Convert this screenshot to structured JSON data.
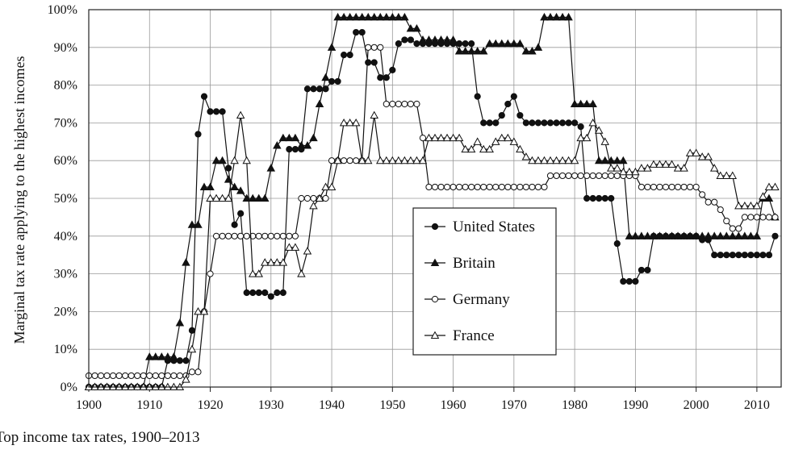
{
  "chart_data": {
    "type": "line",
    "title": "",
    "caption": "Top income tax rates, 1900–2013",
    "xlabel": "",
    "ylabel": "Marginal tax rate applying to the highest incomes",
    "xlim": [
      1900,
      2014
    ],
    "ylim": [
      0,
      100
    ],
    "x_ticks": [
      "1900",
      "1910",
      "1920",
      "1930",
      "1940",
      "1950",
      "1960",
      "1970",
      "1980",
      "1990",
      "2000",
      "2010"
    ],
    "y_ticks": [
      "0%",
      "10%",
      "20%",
      "30%",
      "40%",
      "50%",
      "60%",
      "70%",
      "80%",
      "90%",
      "100%"
    ],
    "grid": true,
    "legend_position": "inside-lower-center",
    "series": [
      {
        "name": "United States",
        "marker": "filled-circle",
        "x": [
          1900,
          1912,
          1913,
          1914,
          1915,
          1916,
          1917,
          1918,
          1919,
          1920,
          1921,
          1922,
          1923,
          1924,
          1925,
          1926,
          1927,
          1928,
          1929,
          1930,
          1931,
          1932,
          1933,
          1934,
          1935,
          1936,
          1937,
          1938,
          1939,
          1940,
          1941,
          1942,
          1943,
          1944,
          1945,
          1946,
          1947,
          1948,
          1949,
          1950,
          1951,
          1952,
          1953,
          1954,
          1955,
          1960,
          1963,
          1964,
          1965,
          1966,
          1967,
          1968,
          1969,
          1970,
          1971,
          1972,
          1980,
          1981,
          1982,
          1983,
          1984,
          1985,
          1986,
          1987,
          1988,
          1989,
          1990,
          1991,
          1992,
          1993,
          2000,
          2001,
          2002,
          2003,
          2012,
          2013
        ],
        "y": [
          0,
          0,
          7,
          7,
          7,
          7,
          15,
          67,
          77,
          73,
          73,
          73,
          58,
          43,
          46,
          25,
          25,
          25,
          25,
          24,
          25,
          25,
          63,
          63,
          63,
          79,
          79,
          79,
          79,
          81,
          81,
          88,
          88,
          94,
          94,
          86,
          86,
          82,
          82,
          84,
          91,
          92,
          92,
          91,
          91,
          91,
          91,
          77,
          70,
          70,
          70,
          72,
          75,
          77,
          72,
          70,
          70,
          69,
          50,
          50,
          50,
          50,
          50,
          38,
          28,
          28,
          28,
          31,
          31,
          40,
          40,
          39,
          39,
          35,
          35,
          40
        ]
      },
      {
        "name": "Britain",
        "marker": "filled-triangle",
        "x": [
          1900,
          1909,
          1910,
          1913,
          1914,
          1915,
          1916,
          1917,
          1918,
          1919,
          1920,
          1921,
          1922,
          1923,
          1924,
          1925,
          1926,
          1927,
          1928,
          1929,
          1930,
          1931,
          1932,
          1933,
          1934,
          1935,
          1936,
          1937,
          1938,
          1939,
          1940,
          1941,
          1952,
          1953,
          1954,
          1955,
          1960,
          1961,
          1965,
          1966,
          1971,
          1972,
          1973,
          1974,
          1975,
          1979,
          1980,
          1983,
          1984,
          1988,
          1989,
          2010,
          2011,
          2012,
          2013
        ],
        "y": [
          0,
          0,
          8,
          8,
          8,
          17,
          33,
          43,
          43,
          53,
          53,
          60,
          60,
          55,
          53,
          52,
          50,
          50,
          50,
          50,
          58,
          64,
          66,
          66,
          66,
          64,
          64,
          66,
          75,
          82,
          90,
          98,
          98,
          95,
          95,
          92,
          92,
          89,
          89,
          91,
          91,
          89,
          89,
          90,
          98,
          98,
          75,
          75,
          60,
          60,
          40,
          40,
          50,
          50,
          45
        ]
      },
      {
        "name": "Germany",
        "marker": "open-circle",
        "x": [
          1900,
          1911,
          1912,
          1913,
          1914,
          1915,
          1916,
          1917,
          1918,
          1919,
          1920,
          1921,
          1931,
          1932,
          1933,
          1934,
          1935,
          1936,
          1937,
          1938,
          1939,
          1940,
          1945,
          1946,
          1947,
          1948,
          1949,
          1950,
          1954,
          1955,
          1956,
          1975,
          1976,
          1990,
          1991,
          2000,
          2001,
          2002,
          2003,
          2004,
          2005,
          2006,
          2007,
          2008,
          2013
        ],
        "y": [
          3,
          3,
          3,
          3,
          3,
          3,
          3,
          4,
          4,
          20,
          30,
          40,
          40,
          40,
          40,
          40,
          50,
          50,
          50,
          50,
          50,
          60,
          60,
          90,
          90,
          90,
          75,
          75,
          75,
          66,
          53,
          53,
          56,
          56,
          53,
          53,
          51,
          49,
          49,
          47,
          44,
          42,
          42,
          45,
          45
        ]
      },
      {
        "name": "France",
        "marker": "open-triangle",
        "x": [
          1900,
          1914,
          1915,
          1916,
          1917,
          1918,
          1919,
          1920,
          1923,
          1924,
          1925,
          1926,
          1927,
          1928,
          1929,
          1930,
          1931,
          1932,
          1933,
          1934,
          1935,
          1936,
          1937,
          1938,
          1939,
          1940,
          1941,
          1942,
          1943,
          1944,
          1945,
          1946,
          1947,
          1948,
          1954,
          1955,
          1956,
          1961,
          1962,
          1963,
          1964,
          1965,
          1966,
          1967,
          1968,
          1969,
          1970,
          1971,
          1972,
          1973,
          1980,
          1981,
          1982,
          1983,
          1984,
          1985,
          1986,
          1987,
          1988,
          1990,
          1991,
          1992,
          1993,
          1996,
          1997,
          1998,
          1999,
          2000,
          2001,
          2002,
          2003,
          2004,
          2006,
          2007,
          2010,
          2012,
          2013
        ],
        "y": [
          0,
          0,
          0,
          2,
          10,
          20,
          20,
          50,
          50,
          60,
          72,
          60,
          30,
          30,
          33,
          33,
          33,
          33,
          37,
          37,
          30,
          36,
          48,
          50,
          53,
          53,
          60,
          70,
          70,
          70,
          60,
          60,
          72,
          60,
          60,
          60,
          66,
          66,
          63,
          63,
          65,
          63,
          63,
          65,
          66,
          66,
          65,
          63,
          61,
          60,
          60,
          66,
          66,
          70,
          68,
          65,
          58,
          58,
          57,
          57,
          58,
          58,
          59,
          59,
          58,
          58,
          62,
          62,
          61,
          61,
          58,
          56,
          56,
          48,
          48,
          53,
          53
        ]
      }
    ]
  }
}
